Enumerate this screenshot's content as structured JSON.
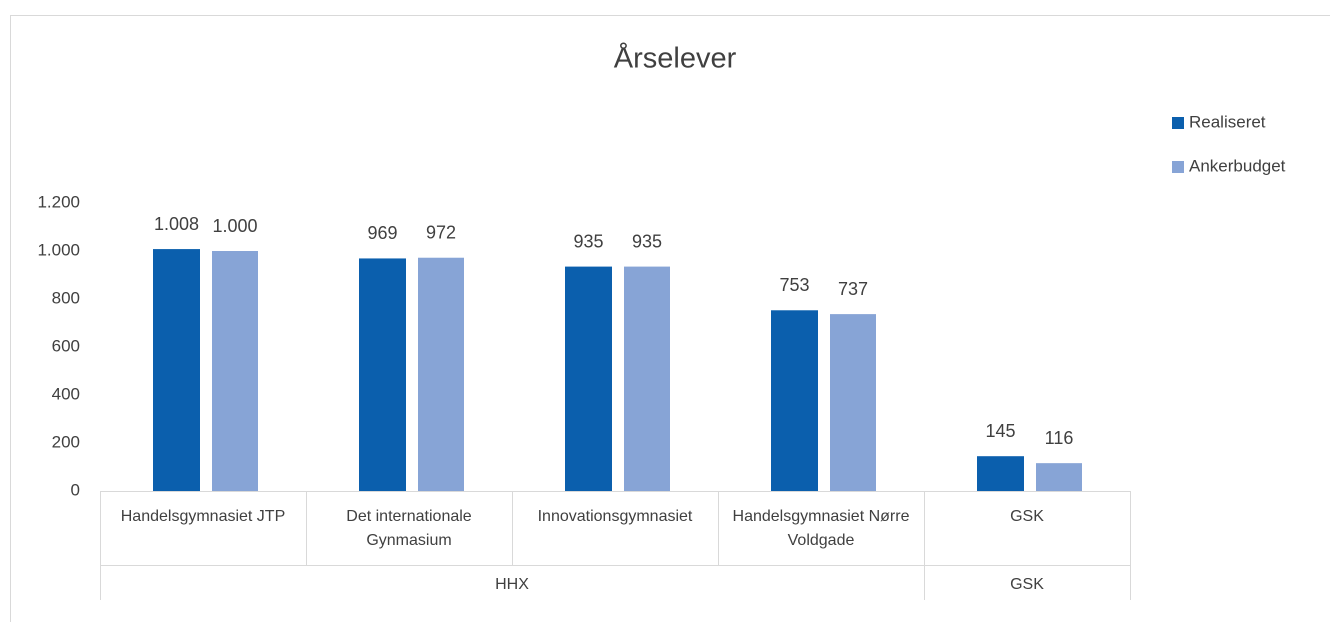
{
  "chart_data": {
    "type": "bar",
    "title": "Årselever",
    "categories": [
      "Handelsgymnasiet JTP",
      "Det internationale Gynmasium",
      "Innovationsgymnasiet",
      "Handelsgymnasiet Nørre Voldgade",
      "GSK"
    ],
    "groups": [
      {
        "name": "HHX",
        "count": 4
      },
      {
        "name": "GSK",
        "count": 1
      }
    ],
    "series": [
      {
        "name": "Realiseret",
        "color": "#0b5fad",
        "values": [
          1008,
          969,
          935,
          753,
          145
        ],
        "value_labels": [
          "1.008",
          "969",
          "935",
          "753",
          "145"
        ]
      },
      {
        "name": "Ankerbudget",
        "color": "#87a4d6",
        "values": [
          1000,
          972,
          935,
          737,
          116
        ],
        "value_labels": [
          "1.000",
          "972",
          "935",
          "737",
          "116"
        ]
      }
    ],
    "ylim": [
      0,
      1200
    ],
    "yticks": [
      0,
      200,
      400,
      600,
      800,
      {
        "value": 1000,
        "label": "1.000"
      },
      {
        "value": 1200,
        "label": "1.200"
      }
    ],
    "grid": false,
    "legend": "right"
  }
}
